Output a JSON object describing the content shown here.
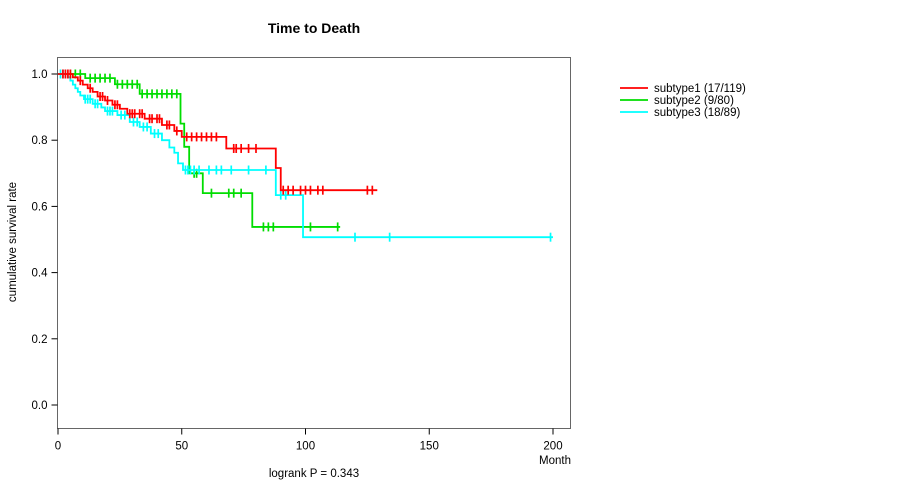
{
  "chart_data": {
    "type": "line",
    "variant": "kaplan-meier-step",
    "title": "Time to Death",
    "xlabel": "Month",
    "ylabel": "cumulative survival rate",
    "footnote": "logrank P = 0.343",
    "xlim": [
      0,
      210
    ],
    "ylim": [
      0.0,
      1.0
    ],
    "grid": false,
    "legend_position": "right-outside",
    "xticks": [
      [
        0,
        "0"
      ],
      [
        50,
        "50"
      ],
      [
        100,
        "100"
      ],
      [
        150,
        "150"
      ],
      [
        200,
        "200"
      ]
    ],
    "yticks": [
      [
        0.0,
        "0.0"
      ],
      [
        0.2,
        "0.2"
      ],
      [
        0.4,
        "0.4"
      ],
      [
        0.6,
        "0.6"
      ],
      [
        0.8,
        "0.8"
      ],
      [
        1.0,
        "1.0"
      ]
    ],
    "frame_color": "#666666",
    "axis_color": "#000000",
    "series": [
      {
        "name": "subtype2",
        "label": "subtype2 (9/80)",
        "color": "#00dd00",
        "end_month": 114,
        "steps": [
          [
            0,
            1.0
          ],
          [
            11,
            0.9875
          ],
          [
            23,
            0.969
          ],
          [
            33,
            0.94
          ],
          [
            49.5,
            0.85
          ],
          [
            51,
            0.78
          ],
          [
            53,
            0.7
          ],
          [
            58.5,
            0.64
          ],
          [
            78.5,
            0.538
          ]
        ],
        "censors": [
          [
            5,
            1
          ],
          [
            7,
            1
          ],
          [
            9,
            1
          ],
          [
            13,
            0.9875
          ],
          [
            15,
            0.9875
          ],
          [
            17,
            0.9875
          ],
          [
            19,
            0.9875
          ],
          [
            21,
            0.9875
          ],
          [
            24,
            0.969
          ],
          [
            26,
            0.969
          ],
          [
            28,
            0.969
          ],
          [
            30,
            0.969
          ],
          [
            32,
            0.969
          ],
          [
            34,
            0.94
          ],
          [
            36,
            0.94
          ],
          [
            38,
            0.94
          ],
          [
            40,
            0.94
          ],
          [
            42,
            0.94
          ],
          [
            44,
            0.94
          ],
          [
            46,
            0.94
          ],
          [
            48,
            0.94
          ],
          [
            55,
            0.7
          ],
          [
            56,
            0.7
          ],
          [
            62,
            0.64
          ],
          [
            69,
            0.64
          ],
          [
            71,
            0.64
          ],
          [
            74,
            0.64
          ],
          [
            83,
            0.538
          ],
          [
            85,
            0.538
          ],
          [
            87,
            0.538
          ],
          [
            102,
            0.538
          ],
          [
            113,
            0.538
          ]
        ]
      },
      {
        "name": "subtype3",
        "label": "subtype3 (18/89)",
        "color": "#00ffff",
        "end_month": 200,
        "steps": [
          [
            0,
            1.0
          ],
          [
            4,
            0.99
          ],
          [
            5,
            0.98
          ],
          [
            6,
            0.968
          ],
          [
            7,
            0.957
          ],
          [
            8,
            0.946
          ],
          [
            9,
            0.935
          ],
          [
            10.5,
            0.924
          ],
          [
            14,
            0.91
          ],
          [
            17.5,
            0.899
          ],
          [
            19,
            0.888
          ],
          [
            24,
            0.876
          ],
          [
            29,
            0.855
          ],
          [
            33,
            0.84
          ],
          [
            37.5,
            0.82
          ],
          [
            42,
            0.8
          ],
          [
            45,
            0.778
          ],
          [
            47,
            0.762
          ],
          [
            48.5,
            0.73
          ],
          [
            50.5,
            0.71
          ],
          [
            88,
            0.634
          ],
          [
            99,
            0.507
          ]
        ],
        "censors": [
          [
            1,
            1
          ],
          [
            2,
            1
          ],
          [
            3,
            1
          ],
          [
            11,
            0.924
          ],
          [
            12,
            0.924
          ],
          [
            13,
            0.924
          ],
          [
            15,
            0.91
          ],
          [
            16,
            0.91
          ],
          [
            20,
            0.888
          ],
          [
            21,
            0.888
          ],
          [
            22,
            0.888
          ],
          [
            25.5,
            0.876
          ],
          [
            27,
            0.876
          ],
          [
            30.5,
            0.855
          ],
          [
            32,
            0.855
          ],
          [
            34.5,
            0.84
          ],
          [
            36,
            0.84
          ],
          [
            39,
            0.82
          ],
          [
            40.5,
            0.82
          ],
          [
            51.5,
            0.71
          ],
          [
            52.5,
            0.71
          ],
          [
            53.5,
            0.71
          ],
          [
            55,
            0.71
          ],
          [
            57,
            0.71
          ],
          [
            61,
            0.71
          ],
          [
            64,
            0.71
          ],
          [
            66,
            0.71
          ],
          [
            70,
            0.71
          ],
          [
            77,
            0.71
          ],
          [
            84,
            0.71
          ],
          [
            90,
            0.634
          ],
          [
            92,
            0.634
          ],
          [
            120,
            0.507
          ],
          [
            134,
            0.507
          ],
          [
            199,
            0.507
          ]
        ]
      },
      {
        "name": "subtype1",
        "label": "subtype1 (17/119)",
        "color": "#ff0000",
        "end_month": 129,
        "steps": [
          [
            0,
            1.0
          ],
          [
            6,
            0.99
          ],
          [
            8,
            0.98
          ],
          [
            10,
            0.968
          ],
          [
            12,
            0.957
          ],
          [
            14,
            0.946
          ],
          [
            16,
            0.932
          ],
          [
            19,
            0.92
          ],
          [
            22,
            0.907
          ],
          [
            25,
            0.895
          ],
          [
            28,
            0.88
          ],
          [
            35,
            0.865
          ],
          [
            42,
            0.846
          ],
          [
            47,
            0.828
          ],
          [
            50,
            0.81
          ],
          [
            68,
            0.775
          ],
          [
            88,
            0.716
          ],
          [
            90,
            0.649
          ]
        ],
        "censors": [
          [
            2,
            1
          ],
          [
            3,
            1
          ],
          [
            4,
            1
          ],
          [
            5,
            1
          ],
          [
            9,
            0.98
          ],
          [
            13,
            0.957
          ],
          [
            17,
            0.932
          ],
          [
            18,
            0.932
          ],
          [
            20,
            0.92
          ],
          [
            23,
            0.907
          ],
          [
            24,
            0.907
          ],
          [
            29,
            0.88
          ],
          [
            30,
            0.88
          ],
          [
            31,
            0.88
          ],
          [
            33,
            0.88
          ],
          [
            34,
            0.88
          ],
          [
            37,
            0.865
          ],
          [
            38,
            0.865
          ],
          [
            40,
            0.865
          ],
          [
            41,
            0.865
          ],
          [
            44,
            0.846
          ],
          [
            45,
            0.846
          ],
          [
            48,
            0.828
          ],
          [
            52,
            0.81
          ],
          [
            54,
            0.81
          ],
          [
            56,
            0.81
          ],
          [
            58,
            0.81
          ],
          [
            60,
            0.81
          ],
          [
            62,
            0.81
          ],
          [
            64,
            0.81
          ],
          [
            71,
            0.775
          ],
          [
            72,
            0.775
          ],
          [
            74,
            0.775
          ],
          [
            77,
            0.775
          ],
          [
            80,
            0.775
          ],
          [
            91,
            0.649
          ],
          [
            93,
            0.649
          ],
          [
            95,
            0.649
          ],
          [
            98,
            0.649
          ],
          [
            100,
            0.649
          ],
          [
            102,
            0.649
          ],
          [
            105,
            0.649
          ],
          [
            107,
            0.649
          ],
          [
            125,
            0.649
          ],
          [
            127,
            0.649
          ]
        ]
      }
    ],
    "legend_order": [
      "subtype1",
      "subtype2",
      "subtype3"
    ]
  }
}
